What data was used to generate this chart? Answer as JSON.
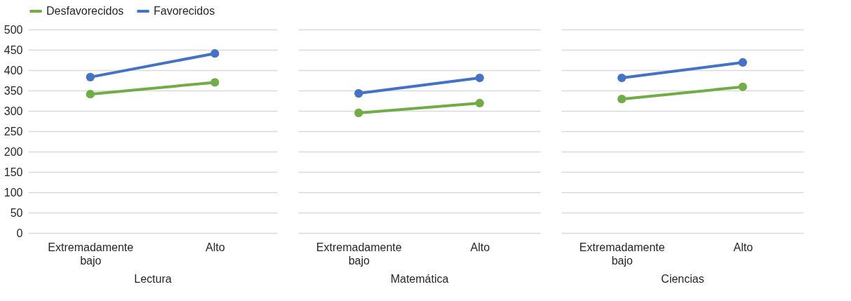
{
  "chart_data": [
    {
      "type": "line",
      "xlabel": "Lectura",
      "categories": [
        "Extremadamente bajo",
        "Alto"
      ],
      "ylim": [
        0,
        500
      ],
      "yticks": [
        0,
        50,
        100,
        150,
        200,
        250,
        300,
        350,
        400,
        450,
        500
      ],
      "grid": "y",
      "legend": "top",
      "marker": "circle",
      "line_style": "solid",
      "series": [
        {
          "name": "Desfavorecidos",
          "color": "#70ad47",
          "values": [
            341,
            370
          ]
        },
        {
          "name": "Favorecidos",
          "color": "#4472c4",
          "values": [
            383,
            441
          ]
        }
      ]
    },
    {
      "type": "line",
      "xlabel": "Matemática",
      "categories": [
        "Extremadamente bajo",
        "Alto"
      ],
      "ylim": [
        0,
        500
      ],
      "yticks": [
        0,
        50,
        100,
        150,
        200,
        250,
        300,
        350,
        400,
        450,
        500
      ],
      "grid": "y",
      "tick_labels": "x",
      "marker": "circle",
      "line_style": "solid",
      "series": [
        {
          "color": "#70ad47",
          "values": [
            295,
            319
          ]
        },
        {
          "color": "#4472c4",
          "values": [
            343,
            381
          ]
        }
      ]
    },
    {
      "type": "line",
      "xlabel": "Ciencias",
      "categories": [
        "Extremadamente bajo",
        "Alto"
      ],
      "ylim": [
        0,
        500
      ],
      "yticks": [
        0,
        50,
        100,
        150,
        200,
        250,
        300,
        350,
        400,
        450,
        500
      ],
      "grid": "y",
      "tick_labels": "x",
      "marker": "circle",
      "line_style": "solid",
      "series": [
        {
          "color": "#70ad47",
          "values": [
            329,
            359
          ]
        },
        {
          "color": "#4472c4",
          "values": [
            381,
            419
          ]
        }
      ]
    }
  ]
}
